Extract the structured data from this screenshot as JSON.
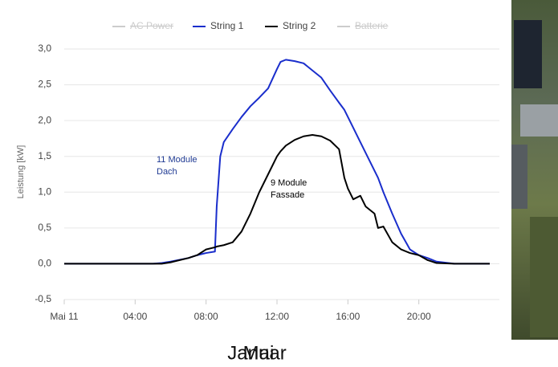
{
  "chart_data": {
    "type": "line",
    "y_label": "Leistung [kW]",
    "x": [
      0,
      5,
      5.5,
      6,
      7,
      7.5,
      8,
      8.5,
      8.6,
      8.8,
      9,
      9.5,
      10,
      10.5,
      11,
      11.5,
      12,
      12.2,
      12.5,
      13,
      13.5,
      14,
      14.5,
      15,
      15.5,
      15.8,
      16,
      16.3,
      16.7,
      17,
      17.5,
      17.7,
      18,
      18.5,
      19,
      19.5,
      20,
      20.5,
      21,
      22,
      24
    ],
    "series": [
      {
        "name": "AC Power",
        "color": "#cccccc",
        "hidden": true
      },
      {
        "name": "String 1",
        "color": "#1a2ecc",
        "values": [
          0,
          0,
          0.01,
          0.03,
          0.08,
          0.12,
          0.15,
          0.17,
          0.8,
          1.5,
          1.7,
          1.88,
          2.05,
          2.2,
          2.32,
          2.45,
          2.72,
          2.82,
          2.85,
          2.83,
          2.8,
          2.7,
          2.6,
          2.42,
          2.25,
          2.15,
          2.05,
          1.9,
          1.7,
          1.55,
          1.3,
          1.2,
          1.0,
          0.7,
          0.42,
          0.2,
          0.12,
          0.08,
          0.03,
          0,
          0
        ]
      },
      {
        "name": "String 2",
        "color": "#000000",
        "values": [
          0,
          0,
          0,
          0.02,
          0.08,
          0.12,
          0.2,
          0.23,
          0.24,
          0.25,
          0.26,
          0.3,
          0.45,
          0.7,
          1.0,
          1.25,
          1.5,
          1.57,
          1.65,
          1.73,
          1.78,
          1.8,
          1.78,
          1.72,
          1.6,
          1.2,
          1.05,
          0.9,
          0.95,
          0.8,
          0.7,
          0.5,
          0.52,
          0.3,
          0.2,
          0.15,
          0.12,
          0.05,
          0.01,
          0,
          0
        ]
      },
      {
        "name": "Batterie",
        "color": "#cccccc",
        "hidden": true
      }
    ],
    "xlim": [
      0,
      24
    ],
    "xticks": [
      {
        "value": 0,
        "label": "Mai 11"
      },
      {
        "value": 4,
        "label": "04:00"
      },
      {
        "value": 8,
        "label": "08:00"
      },
      {
        "value": 12,
        "label": "12:00"
      },
      {
        "value": 16,
        "label": "16:00"
      },
      {
        "value": 20,
        "label": "20:00"
      }
    ],
    "ylim": [
      -0.5,
      3.0
    ],
    "yticks": [
      {
        "value": -0.5,
        "label": "-0,5"
      },
      {
        "value": 0,
        "label": "0,0"
      },
      {
        "value": 0.5,
        "label": "0,5"
      },
      {
        "value": 1.0,
        "label": "1,0"
      },
      {
        "value": 1.5,
        "label": "1,5"
      },
      {
        "value": 2.0,
        "label": "2,0"
      },
      {
        "value": 2.5,
        "label": "2,5"
      },
      {
        "value": 3.0,
        "label": "3,0"
      }
    ],
    "grid": true,
    "annotations": [
      {
        "lines": [
          "11 Module",
          "Dach"
        ],
        "color": "#1f3a93"
      },
      {
        "lines": [
          "9 Module",
          "Fassade"
        ],
        "color": "#000000"
      }
    ],
    "overlay_labels": [
      "Januar",
      "Mai"
    ]
  }
}
